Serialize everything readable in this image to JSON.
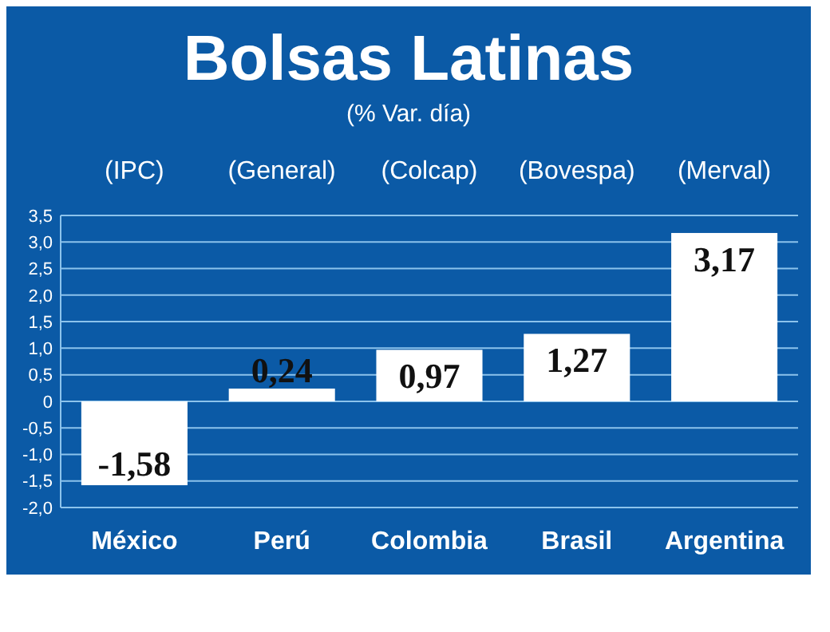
{
  "chart_data": {
    "type": "bar",
    "title": "Bolsas Latinas",
    "subtitle": "(% Var. día)",
    "categories": [
      "México",
      "Perú",
      "Colombia",
      "Brasil",
      "Argentina"
    ],
    "values": [
      -1.58,
      0.24,
      0.97,
      1.27,
      3.17
    ],
    "value_labels": [
      "-1,58",
      "0,24",
      "0,97",
      "1,27",
      "3,17"
    ],
    "color": "#ffffff",
    "annotations": [
      "(IPC)",
      "(General)",
      "(Colcap)",
      "(Bovespa)",
      "(Merval)"
    ],
    "ylim": [
      -2,
      3.5
    ],
    "yticks": [
      {
        "value": -2,
        "label": "-2,0"
      },
      {
        "value": -1.5,
        "label": "-1,5"
      },
      {
        "value": -1,
        "label": "-1,0"
      },
      {
        "value": -0.5,
        "label": "-0,5"
      },
      0,
      {
        "value": 0.5,
        "label": "0,5"
      },
      {
        "value": 1,
        "label": "1,0"
      },
      {
        "value": 1.5,
        "label": "1,5"
      },
      {
        "value": 2,
        "label": "2,0"
      },
      {
        "value": 2.5,
        "label": "2,5"
      },
      {
        "value": 3,
        "label": "3,0"
      },
      {
        "value": 3.5,
        "label": "3,5"
      }
    ],
    "grid": "y"
  }
}
